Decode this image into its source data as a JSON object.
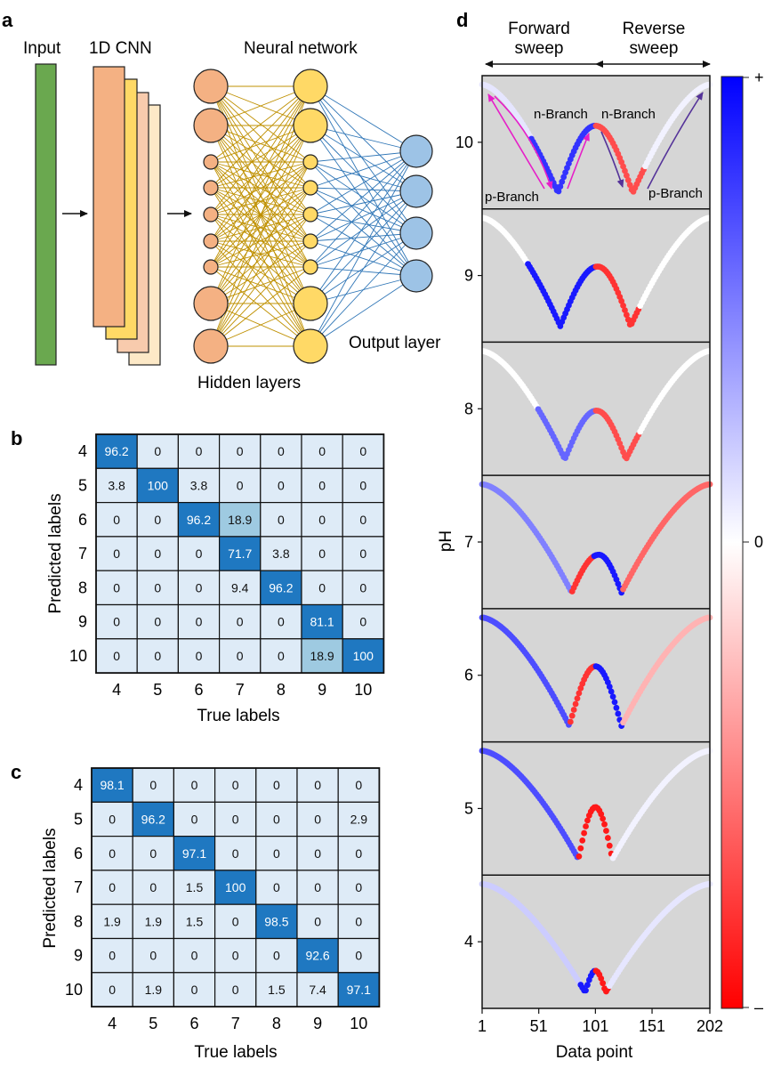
{
  "panel_labels": {
    "a": "a",
    "b": "b",
    "c": "c",
    "d": "d"
  },
  "schematic": {
    "input": "Input",
    "cnn": "1D CNN",
    "neural_network": "Neural network",
    "hidden_layers": "Hidden layers",
    "output_layer": "Output layer",
    "colors": {
      "input": "#6aa84f",
      "cnn_layers": [
        "#f4b183",
        "#ffd966",
        "#f8cbad",
        "#fde9c7"
      ],
      "hidden1": "#f4b183",
      "hidden2": "#ffd966",
      "output": "#9dc3e6",
      "lines1": "#bf9000",
      "lines2": "#2e75b6"
    }
  },
  "confusion_b": {
    "xlabel": "True labels",
    "ylabel": "Predicted labels",
    "labels": [
      "4",
      "5",
      "6",
      "7",
      "8",
      "9",
      "10"
    ],
    "matrix": [
      [
        "96.2",
        "0",
        "0",
        "0",
        "0",
        "0",
        "0"
      ],
      [
        "3.8",
        "100",
        "3.8",
        "0",
        "0",
        "0",
        "0"
      ],
      [
        "0",
        "0",
        "96.2",
        "18.9",
        "0",
        "0",
        "0"
      ],
      [
        "0",
        "0",
        "0",
        "71.7",
        "3.8",
        "0",
        "0"
      ],
      [
        "0",
        "0",
        "0",
        "9.4",
        "96.2",
        "0",
        "0"
      ],
      [
        "0",
        "0",
        "0",
        "0",
        "0",
        "81.1",
        "0"
      ],
      [
        "0",
        "0",
        "0",
        "0",
        "0",
        "18.9",
        "100"
      ]
    ]
  },
  "confusion_c": {
    "xlabel": "True labels",
    "ylabel": "Predicted labels",
    "labels": [
      "4",
      "5",
      "6",
      "7",
      "8",
      "9",
      "10"
    ],
    "matrix": [
      [
        "98.1",
        "0",
        "0",
        "0",
        "0",
        "0",
        "0"
      ],
      [
        "0",
        "96.2",
        "0",
        "0",
        "0",
        "0",
        "2.9"
      ],
      [
        "0",
        "0",
        "97.1",
        "0",
        "0",
        "0",
        "0"
      ],
      [
        "0",
        "0",
        "1.5",
        "100",
        "0",
        "0",
        "0"
      ],
      [
        "1.9",
        "1.9",
        "1.5",
        "0",
        "98.5",
        "0",
        "0"
      ],
      [
        "0",
        "0",
        "0",
        "0",
        "0",
        "92.6",
        "0"
      ],
      [
        "0",
        "1.9",
        "0",
        "0",
        "1.5",
        "7.4",
        "97.1"
      ]
    ]
  },
  "sweep": {
    "forward": [
      "Forward",
      "sweep"
    ],
    "reverse": [
      "Reverse",
      "sweep"
    ],
    "n_branch": "n-Branch",
    "p_branch": "p-Branch",
    "xlabel": "Data point",
    "ylabel": "pH",
    "xticks": [
      "1",
      "51",
      "101",
      "151",
      "202"
    ],
    "xrange": [
      1,
      202
    ],
    "colorbar": {
      "max": "+",
      "mid": "0",
      "min": "–",
      "colors": [
        "#0000ff",
        "#ffffff",
        "#ff0000"
      ]
    }
  },
  "chart_data": [
    {
      "type": "heatmap",
      "panel": "b",
      "xlabel": "True labels",
      "ylabel": "Predicted labels",
      "x": [
        "4",
        "5",
        "6",
        "7",
        "8",
        "9",
        "10"
      ],
      "y": [
        "4",
        "5",
        "6",
        "7",
        "8",
        "9",
        "10"
      ],
      "values": [
        [
          96.2,
          0,
          0,
          0,
          0,
          0,
          0
        ],
        [
          3.8,
          100,
          3.8,
          0,
          0,
          0,
          0
        ],
        [
          0,
          0,
          96.2,
          18.9,
          0,
          0,
          0
        ],
        [
          0,
          0,
          0,
          71.7,
          3.8,
          0,
          0
        ],
        [
          0,
          0,
          0,
          9.4,
          96.2,
          0,
          0
        ],
        [
          0,
          0,
          0,
          0,
          0,
          81.1,
          0
        ],
        [
          0,
          0,
          0,
          0,
          0,
          18.9,
          100
        ]
      ]
    },
    {
      "type": "heatmap",
      "panel": "c",
      "xlabel": "True labels",
      "ylabel": "Predicted labels",
      "x": [
        "4",
        "5",
        "6",
        "7",
        "8",
        "9",
        "10"
      ],
      "y": [
        "4",
        "5",
        "6",
        "7",
        "8",
        "9",
        "10"
      ],
      "values": [
        [
          98.1,
          0,
          0,
          0,
          0,
          0,
          0
        ],
        [
          0,
          96.2,
          0,
          0,
          0,
          0,
          2.9
        ],
        [
          0,
          0,
          97.1,
          0,
          0,
          0,
          0
        ],
        [
          0,
          0,
          1.5,
          100,
          0,
          0,
          0
        ],
        [
          1.9,
          1.9,
          1.5,
          0,
          98.5,
          0,
          0
        ],
        [
          0,
          0,
          0,
          0,
          0,
          92.6,
          0
        ],
        [
          0,
          1.9,
          0,
          0,
          1.5,
          7.4,
          97.1
        ]
      ]
    },
    {
      "type": "line",
      "panel": "d",
      "xlabel": "Data point",
      "ylabel": "pH",
      "xlim": [
        1,
        202
      ],
      "xticks": [
        1,
        51,
        101,
        151,
        202
      ],
      "categories": [
        "10",
        "9",
        "8",
        "7",
        "6",
        "5",
        "4"
      ],
      "series": [
        {
          "name": "10",
          "start": 1.0,
          "min1_x": 68,
          "peak_x": 101,
          "min2_x": 134,
          "min_depth": 0.85,
          "peak_height": 0.62
        },
        {
          "name": "9",
          "start": 1.0,
          "min1_x": 70,
          "peak_x": 103,
          "min2_x": 132,
          "min_depth": 0.85,
          "peak_height": 0.55
        },
        {
          "name": "8",
          "start": 1.0,
          "min1_x": 74,
          "peak_x": 102,
          "min2_x": 128,
          "min_depth": 0.85,
          "peak_height": 0.45
        },
        {
          "name": "7",
          "start": 1.0,
          "min1_x": 80,
          "peak_x": 104,
          "min2_x": 124,
          "min_depth": 0.85,
          "peak_height": 0.35
        },
        {
          "name": "6",
          "start": 1.0,
          "min1_x": 78,
          "peak_x": 101,
          "min2_x": 124,
          "min_depth": 0.85,
          "peak_height": 0.55
        },
        {
          "name": "5",
          "start": 1.0,
          "min1_x": 86,
          "peak_x": 101,
          "min2_x": 116,
          "min_depth": 0.85,
          "peak_height": 0.48
        },
        {
          "name": "4",
          "start": 1.0,
          "min1_x": 92,
          "peak_x": 101,
          "min2_x": 110,
          "min_depth": 0.85,
          "peak_height": 0.2
        }
      ]
    }
  ]
}
